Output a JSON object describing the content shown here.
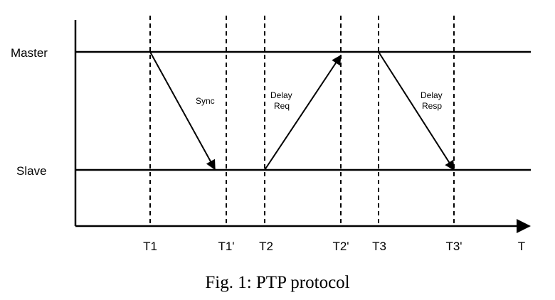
{
  "lanes": {
    "master": "Master",
    "slave": "Slave"
  },
  "ticks": {
    "t1": "T1",
    "t1p": "T1'",
    "t2": "T2",
    "t2p": "T2'",
    "t3": "T3",
    "t3p": "T3'"
  },
  "axis": {
    "label": "T"
  },
  "messages": {
    "sync": [
      "Sync"
    ],
    "delay_req": [
      "Delay",
      "Req"
    ],
    "delay_resp": [
      "Delay",
      "Resp"
    ]
  },
  "caption": "Fig. 1: PTP protocol"
}
